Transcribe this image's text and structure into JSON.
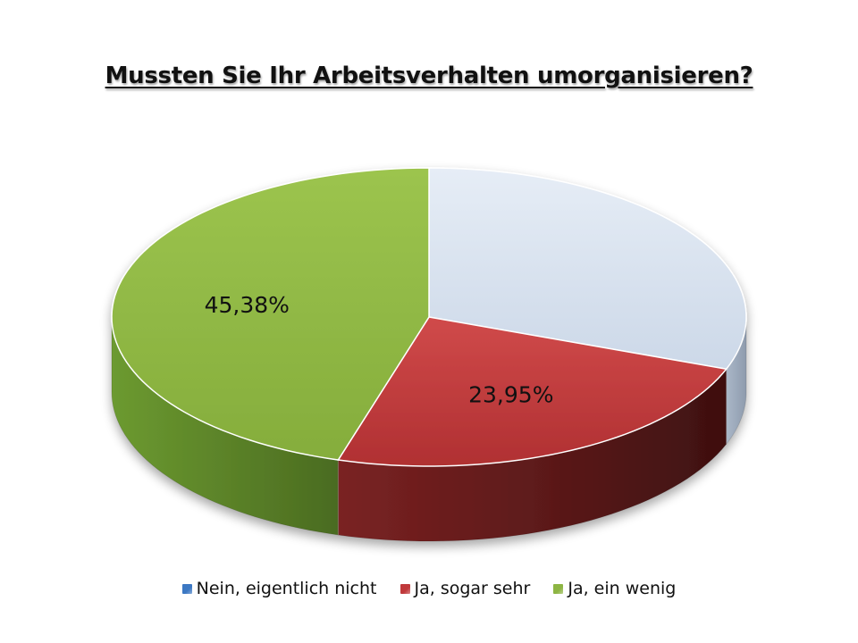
{
  "chart_data": {
    "type": "pie",
    "title": "Mussten Sie Ihr Arbeitsverhalten umorganisieren?",
    "slices": [
      {
        "name": "Nein, eigentlich nicht",
        "value": 30.67,
        "label": "",
        "color": "#dce6f2"
      },
      {
        "name": "Ja, sogar sehr",
        "value": 23.95,
        "label": "23,95%",
        "color": "#c0393b"
      },
      {
        "name": "Ja, ein wenig",
        "value": 45.38,
        "label": "45,38%",
        "color": "#8db543"
      }
    ],
    "legend_position": "bottom",
    "legend_swatch_colors": [
      "#3c78c3",
      "#c0393b",
      "#8db543"
    ],
    "style": "3d-tilted"
  }
}
